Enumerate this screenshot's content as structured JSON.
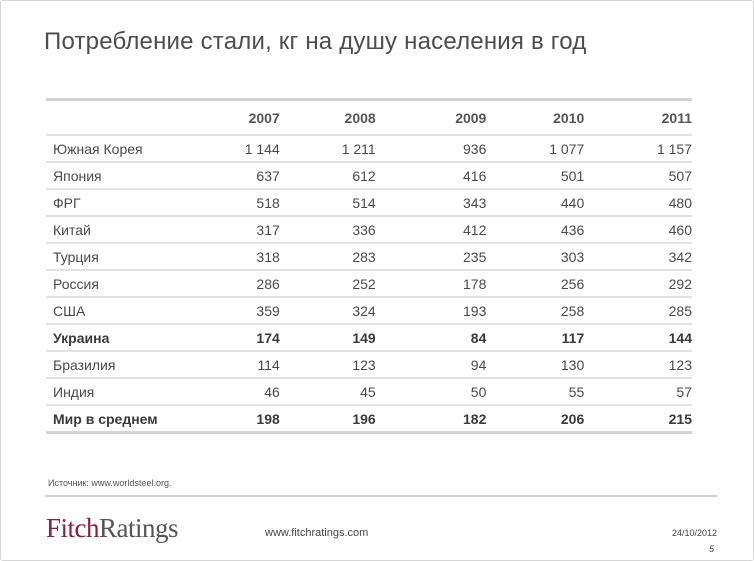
{
  "slide": {
    "title": "Потребление стали, кг на душу населения в год",
    "source": "Источник: www.worldsteel.org.",
    "logo": {
      "part1": "Fitch",
      "part2": "Ratings"
    },
    "url": "www.fitchratings.com",
    "date": "24/10/2012",
    "page": "5"
  },
  "table": {
    "columns": [
      "2007",
      "2008",
      "2009",
      "2010",
      "2011"
    ],
    "rows": [
      {
        "name": "Южная Корея",
        "values": [
          "1 144",
          "1 211",
          "936",
          "1 077",
          "1 157"
        ],
        "bold": false
      },
      {
        "name": "Япония",
        "values": [
          "637",
          "612",
          "416",
          "501",
          "507"
        ],
        "bold": false
      },
      {
        "name": "ФРГ",
        "values": [
          "518",
          "514",
          "343",
          "440",
          "480"
        ],
        "bold": false
      },
      {
        "name": "Китай",
        "values": [
          "317",
          "336",
          "412",
          "436",
          "460"
        ],
        "bold": false
      },
      {
        "name": "Турция",
        "values": [
          "318",
          "283",
          "235",
          "303",
          "342"
        ],
        "bold": false
      },
      {
        "name": "Россия",
        "values": [
          "286",
          "252",
          "178",
          "256",
          "292"
        ],
        "bold": false
      },
      {
        "name": "США",
        "values": [
          "359",
          "324",
          "193",
          "258",
          "285"
        ],
        "bold": false
      },
      {
        "name": "Украина",
        "values": [
          "174",
          "149",
          "84",
          "117",
          "144"
        ],
        "bold": true
      },
      {
        "name": "Бразилия",
        "values": [
          "114",
          "123",
          "94",
          "130",
          "123"
        ],
        "bold": false
      },
      {
        "name": "Индия",
        "values": [
          "46",
          "45",
          "50",
          "55",
          "57"
        ],
        "bold": false
      },
      {
        "name": "Мир в среднем",
        "values": [
          "198",
          "196",
          "182",
          "206",
          "215"
        ],
        "bold": true
      }
    ]
  }
}
